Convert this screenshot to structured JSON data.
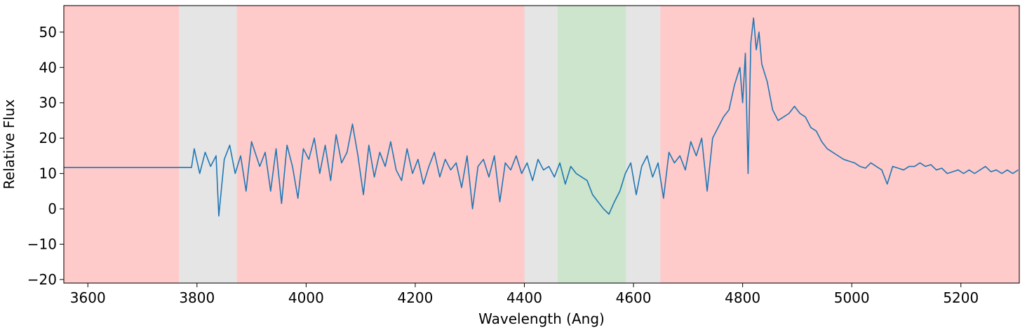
{
  "chart_data": {
    "type": "line",
    "xlabel": "Wavelength (Ang)",
    "ylabel": "Relative Flux",
    "xlim": [
      3556,
      5307
    ],
    "ylim": [
      -21,
      57.5
    ],
    "xticks": [
      3600,
      3800,
      4000,
      4200,
      4400,
      4600,
      4800,
      5000,
      5200
    ],
    "yticks": [
      {
        "value": -20,
        "label": "−20"
      },
      {
        "value": -10,
        "label": "−10"
      },
      0,
      10,
      20,
      30,
      40,
      50
    ],
    "grid": false,
    "color": "#1f77b4",
    "regions": [
      {
        "x": [
          3556,
          3768
        ],
        "color": "#ffcaca"
      },
      {
        "x": [
          3768,
          3874
        ],
        "color": "#e5e5e5"
      },
      {
        "x": [
          3874,
          4401
        ],
        "color": "#ffcaca"
      },
      {
        "x": [
          4401,
          4462
        ],
        "color": "#e5e5e5"
      },
      {
        "x": [
          4462,
          4587
        ],
        "color": "#cce5cc"
      },
      {
        "x": [
          4587,
          4650
        ],
        "color": "#e5e5e5"
      },
      {
        "x": [
          4650,
          5307
        ],
        "color": "#ffcaca"
      }
    ],
    "x": [
      3556,
      3790,
      3795,
      3805,
      3815,
      3825,
      3835,
      3840,
      3850,
      3860,
      3870,
      3880,
      3890,
      3900,
      3915,
      3925,
      3935,
      3945,
      3955,
      3965,
      3975,
      3985,
      3995,
      4005,
      4015,
      4025,
      4035,
      4045,
      4055,
      4065,
      4075,
      4085,
      4095,
      4105,
      4115,
      4125,
      4135,
      4145,
      4155,
      4165,
      4175,
      4185,
      4195,
      4205,
      4215,
      4225,
      4235,
      4245,
      4255,
      4265,
      4275,
      4285,
      4295,
      4305,
      4315,
      4325,
      4335,
      4345,
      4355,
      4365,
      4375,
      4385,
      4395,
      4405,
      4415,
      4425,
      4435,
      4445,
      4455,
      4465,
      4475,
      4485,
      4495,
      4505,
      4515,
      4525,
      4535,
      4545,
      4555,
      4565,
      4575,
      4585,
      4595,
      4605,
      4615,
      4625,
      4635,
      4645,
      4655,
      4665,
      4675,
      4685,
      4695,
      4705,
      4715,
      4725,
      4735,
      4745,
      4755,
      4765,
      4775,
      4785,
      4795,
      4800,
      4805,
      4810,
      4815,
      4820,
      4825,
      4830,
      4835,
      4845,
      4855,
      4865,
      4875,
      4885,
      4895,
      4905,
      4915,
      4925,
      4935,
      4945,
      4955,
      4965,
      4975,
      4985,
      4995,
      5005,
      5015,
      5025,
      5035,
      5045,
      5055,
      5065,
      5075,
      5085,
      5095,
      5105,
      5115,
      5125,
      5135,
      5145,
      5155,
      5165,
      5175,
      5185,
      5195,
      5205,
      5215,
      5225,
      5235,
      5245,
      5255,
      5265,
      5275,
      5285,
      5295,
      5305
    ],
    "values": [
      11.7,
      11.7,
      17,
      10,
      16,
      12,
      15,
      -2,
      14,
      18,
      10,
      15,
      5,
      19,
      12,
      16,
      5,
      17,
      1.5,
      18,
      12,
      3,
      17,
      14,
      20,
      10,
      18,
      8,
      21,
      13,
      16,
      24,
      15,
      4,
      18,
      9,
      16,
      12,
      19,
      11,
      8,
      17,
      10,
      14,
      7,
      12,
      16,
      9,
      14,
      11,
      13,
      6,
      15,
      0,
      12,
      14,
      9,
      15,
      2,
      13,
      11,
      15,
      10,
      13,
      8,
      14,
      11,
      12,
      9,
      13,
      7,
      12,
      10,
      9,
      8,
      4,
      2,
      0,
      -1.5,
      2,
      5,
      10,
      13,
      4,
      12,
      15,
      9,
      13,
      3,
      16,
      13,
      15,
      11,
      19,
      15,
      20,
      5,
      20,
      23,
      26,
      28,
      35,
      40,
      30,
      44,
      10,
      47,
      54,
      45,
      50,
      41,
      36,
      28,
      25,
      26,
      27,
      29,
      27,
      26,
      23,
      22,
      19,
      17,
      16,
      15,
      14,
      13.5,
      13,
      12,
      11.5,
      13,
      12,
      11,
      7,
      12,
      11.5,
      11,
      12,
      12,
      13,
      12,
      12.5,
      11,
      11.5,
      10,
      10.5,
      11,
      10,
      11,
      10,
      11,
      12,
      10.5,
      11,
      10,
      11,
      10,
      11
    ]
  }
}
